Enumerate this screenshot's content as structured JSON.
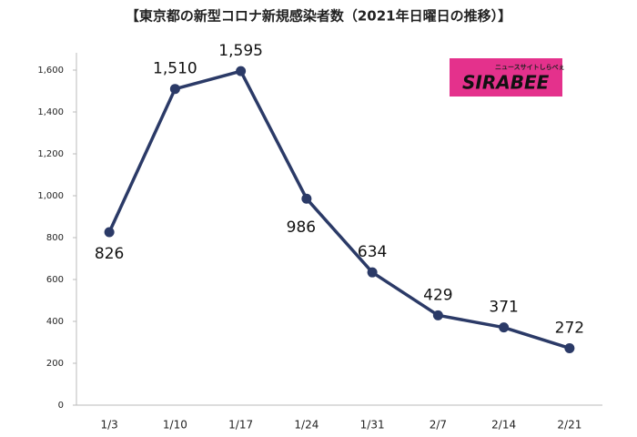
{
  "chart_data": {
    "type": "line",
    "title": "【東京都の新型コロナ新規感染者数（2021年日曜日の推移）】",
    "categories": [
      "1/3",
      "1/10",
      "1/17",
      "1/24",
      "1/31",
      "2/7",
      "2/14",
      "2/21"
    ],
    "values": [
      826,
      1510,
      1595,
      986,
      634,
      429,
      371,
      272
    ],
    "value_labels": [
      "826",
      "1,510",
      "1,595",
      "986",
      "634",
      "429",
      "371",
      "272"
    ],
    "color": "#2b3a67",
    "ylim": [
      0,
      1600
    ],
    "yticks": [
      0,
      200,
      400,
      600,
      800,
      {
        "value": 1000,
        "label": "1,000"
      },
      {
        "value": 1200,
        "label": "1,200"
      },
      {
        "value": 1400,
        "label": "1,400"
      },
      {
        "value": 1600,
        "label": "1,600"
      }
    ],
    "grid": false
  },
  "logo": {
    "name": "SIRABEE",
    "tagline": "ニュースサイトしらべぇ"
  }
}
